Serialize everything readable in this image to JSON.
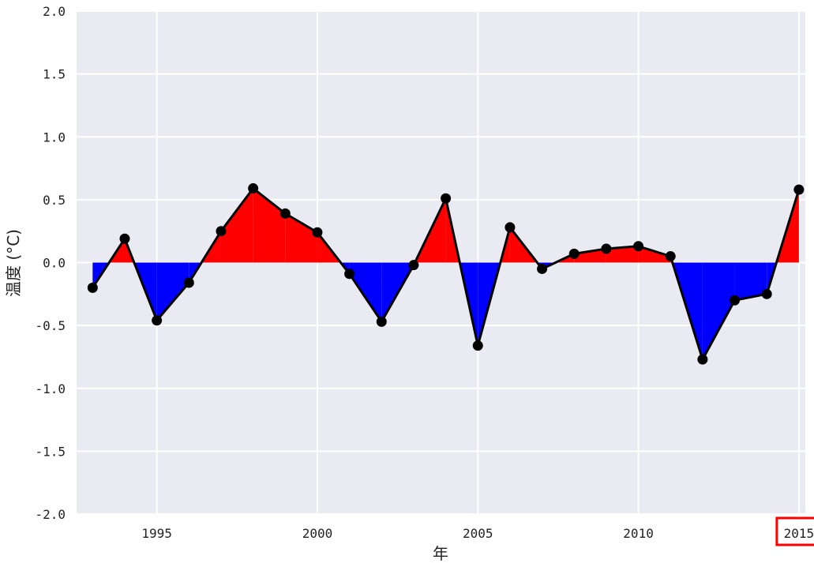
{
  "chart_data": {
    "type": "area",
    "title": "",
    "xlabel": "年",
    "ylabel": "温度 (°C)",
    "xlim": [
      1992.5,
      2015.2
    ],
    "ylim": [
      -2.0,
      2.0
    ],
    "grid": true,
    "x_ticks": [
      1995,
      2000,
      2005,
      2010,
      2015
    ],
    "y_ticks": [
      -2.0,
      -1.5,
      -1.0,
      -0.5,
      0.0,
      0.5,
      1.0,
      1.5,
      2.0
    ],
    "x_tick_labels": [
      "1995",
      "2000",
      "2005",
      "2010",
      "2015"
    ],
    "y_tick_labels": [
      "-2.0",
      "-1.5",
      "-1.0",
      "-0.5",
      "0.0",
      "0.5",
      "1.0",
      "1.5",
      "2.0"
    ],
    "highlighted_tick": "2015",
    "x": [
      1993,
      1994,
      1995,
      1996,
      1997,
      1998,
      1999,
      2000,
      2001,
      2002,
      2003,
      2004,
      2005,
      2006,
      2007,
      2008,
      2009,
      2010,
      2011,
      2012,
      2013,
      2014,
      2015
    ],
    "series": [
      {
        "values": [
          -0.2,
          0.19,
          -0.46,
          -0.16,
          0.25,
          0.59,
          0.39,
          0.24,
          -0.09,
          -0.47,
          -0.02,
          0.51,
          -0.66,
          0.28,
          -0.05,
          0.07,
          0.11,
          0.13,
          0.05,
          -0.77,
          -0.3,
          -0.25,
          0.58
        ],
        "line_color": "#000000",
        "marker_color": "#000000"
      }
    ],
    "fill_positive_color": "#ff0000",
    "fill_negative_color": "#0000ff",
    "background_color": "#eaeaf2",
    "grid_color": "#ffffff",
    "highlight_color": "#ff0000"
  }
}
